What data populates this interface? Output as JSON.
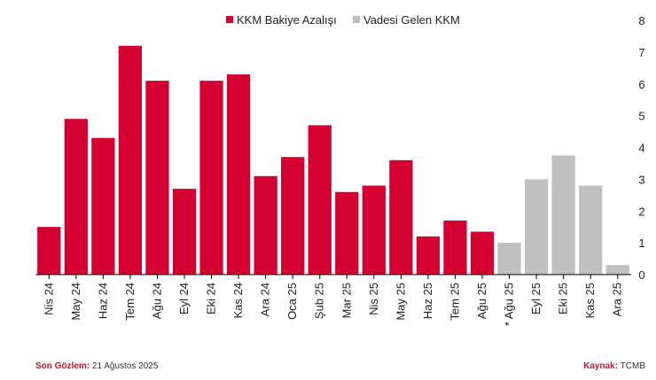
{
  "chart_data": {
    "type": "bar",
    "categories": [
      "Nis 24",
      "May 24",
      "Haz 24",
      "Tem 24",
      "Ağu 24",
      "Eyl 24",
      "Eki 24",
      "Kas 24",
      "Ara 24",
      "Oca 25",
      "Şub 25",
      "Mar 25",
      "Nis 25",
      "May 25",
      "Haz 25",
      "Tem 25",
      "Ağu 25",
      "* Ağu 25",
      "Eyl 25",
      "Eki 25",
      "Kas 25",
      "Ara 25"
    ],
    "series": [
      {
        "name": "KKM Bakiye Azalışı",
        "color": "#d50032",
        "values": [
          1.5,
          4.9,
          4.3,
          7.2,
          6.1,
          2.7,
          6.1,
          6.3,
          3.1,
          3.7,
          4.7,
          2.6,
          2.8,
          3.6,
          1.2,
          1.7,
          1.35,
          null,
          null,
          null,
          null,
          null
        ]
      },
      {
        "name": "Vadesi Gelen KKM",
        "color": "#c0c0c0",
        "values": [
          null,
          null,
          null,
          null,
          null,
          null,
          null,
          null,
          null,
          null,
          null,
          null,
          null,
          null,
          null,
          null,
          null,
          1.0,
          3.0,
          3.75,
          2.8,
          0.3
        ]
      }
    ],
    "yticks": [
      0,
      1,
      2,
      3,
      4,
      5,
      6,
      7,
      8
    ],
    "ylim": [
      0,
      8
    ],
    "y_axis_side": "right",
    "legend_position": "top-center",
    "title": "",
    "xlabel": "",
    "ylabel": ""
  },
  "footer": {
    "left_label": "Son Gözlem:",
    "left_value": "21 Ağustos 2025",
    "right_label": "Kaynak:",
    "right_value": "TCMB"
  }
}
